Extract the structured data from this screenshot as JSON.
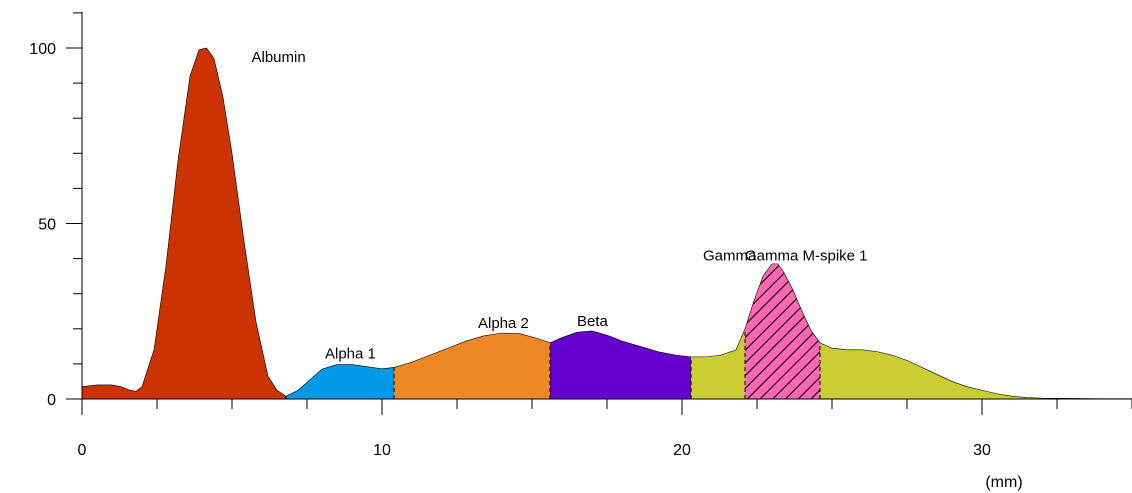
{
  "chart_data": {
    "type": "area",
    "title": "",
    "xlabel": "(mm)",
    "ylabel": "",
    "xlim": [
      0,
      35
    ],
    "ylim": [
      0,
      110
    ],
    "x_ticks": [
      0,
      10,
      20,
      30
    ],
    "x_minor_step": 2.5,
    "y_ticks": [
      0,
      50,
      100
    ],
    "y_minor_step": 10,
    "grid": false,
    "curve": {
      "x": [
        0,
        0.5,
        1.0,
        1.3,
        1.6,
        1.8,
        2.0,
        2.4,
        2.8,
        3.2,
        3.6,
        3.9,
        4.15,
        4.4,
        4.7,
        5.0,
        5.4,
        5.8,
        6.2,
        6.5,
        6.8,
        7.2,
        7.6,
        8.0,
        8.5,
        9.0,
        9.5,
        10.0,
        10.4,
        11.0,
        11.6,
        12.2,
        12.8,
        13.4,
        14.0,
        14.6,
        15.2,
        15.6,
        16.0,
        16.5,
        17.0,
        17.5,
        18.0,
        18.6,
        19.2,
        19.8,
        20.3,
        20.8,
        21.3,
        21.8,
        22.1,
        22.4,
        22.7,
        23.0,
        23.2,
        23.4,
        23.7,
        24.0,
        24.3,
        24.6,
        25.0,
        25.5,
        26.0,
        26.5,
        27.0,
        27.5,
        28.0,
        28.5,
        29.0,
        29.5,
        30.0,
        30.5,
        31.0,
        31.5,
        32.0,
        33.0,
        34.0,
        35.0
      ],
      "y": [
        3.5,
        4.0,
        4.0,
        3.5,
        2.5,
        2.2,
        3.5,
        14.0,
        38.0,
        68.0,
        92.0,
        99.5,
        100.0,
        97.0,
        86.0,
        70.0,
        45.0,
        22.0,
        6.5,
        2.5,
        0.8,
        2.5,
        5.5,
        8.5,
        9.8,
        9.8,
        9.2,
        8.6,
        9.0,
        10.5,
        12.5,
        14.5,
        16.5,
        18.0,
        18.8,
        18.6,
        17.2,
        16.0,
        17.5,
        19.0,
        19.4,
        18.2,
        16.5,
        15.0,
        13.5,
        12.5,
        12.0,
        12.0,
        12.5,
        14.0,
        20.0,
        28.0,
        35.0,
        38.5,
        38.5,
        36.0,
        31.0,
        25.0,
        19.5,
        16.0,
        14.5,
        14.0,
        14.0,
        13.5,
        12.5,
        11.0,
        9.0,
        7.0,
        5.0,
        3.5,
        2.5,
        1.5,
        0.8,
        0.4,
        0.25,
        0.15,
        0.1,
        0.1
      ]
    },
    "fractions": [
      {
        "name": "Albumin",
        "start": 0,
        "end": 6.8,
        "color": "#cc3300",
        "label_x": 5.65,
        "label_y": 96
      },
      {
        "name": "Alpha 1",
        "start": 6.8,
        "end": 10.4,
        "color": "#0099e6",
        "label_x": 8.1,
        "label_y": 11.5
      },
      {
        "name": "Alpha 2",
        "start": 10.4,
        "end": 15.6,
        "color": "#ee8826",
        "label_x": 13.2,
        "label_y": 20.2
      },
      {
        "name": "Beta",
        "start": 15.6,
        "end": 20.3,
        "color": "#6600cc",
        "label_x": 16.5,
        "label_y": 20.8
      },
      {
        "name": "Gamma",
        "start": 20.3,
        "end": 35.0,
        "color": "#cccc33",
        "label_x": 20.7,
        "label_y": 39.5
      }
    ],
    "spikes": [
      {
        "name": "Gamma M-spike 1",
        "start": 22.1,
        "end": 24.6,
        "color": "#ff66b3",
        "pattern": "hatch",
        "label_x": 22.1,
        "label_y": 39.5
      }
    ]
  }
}
